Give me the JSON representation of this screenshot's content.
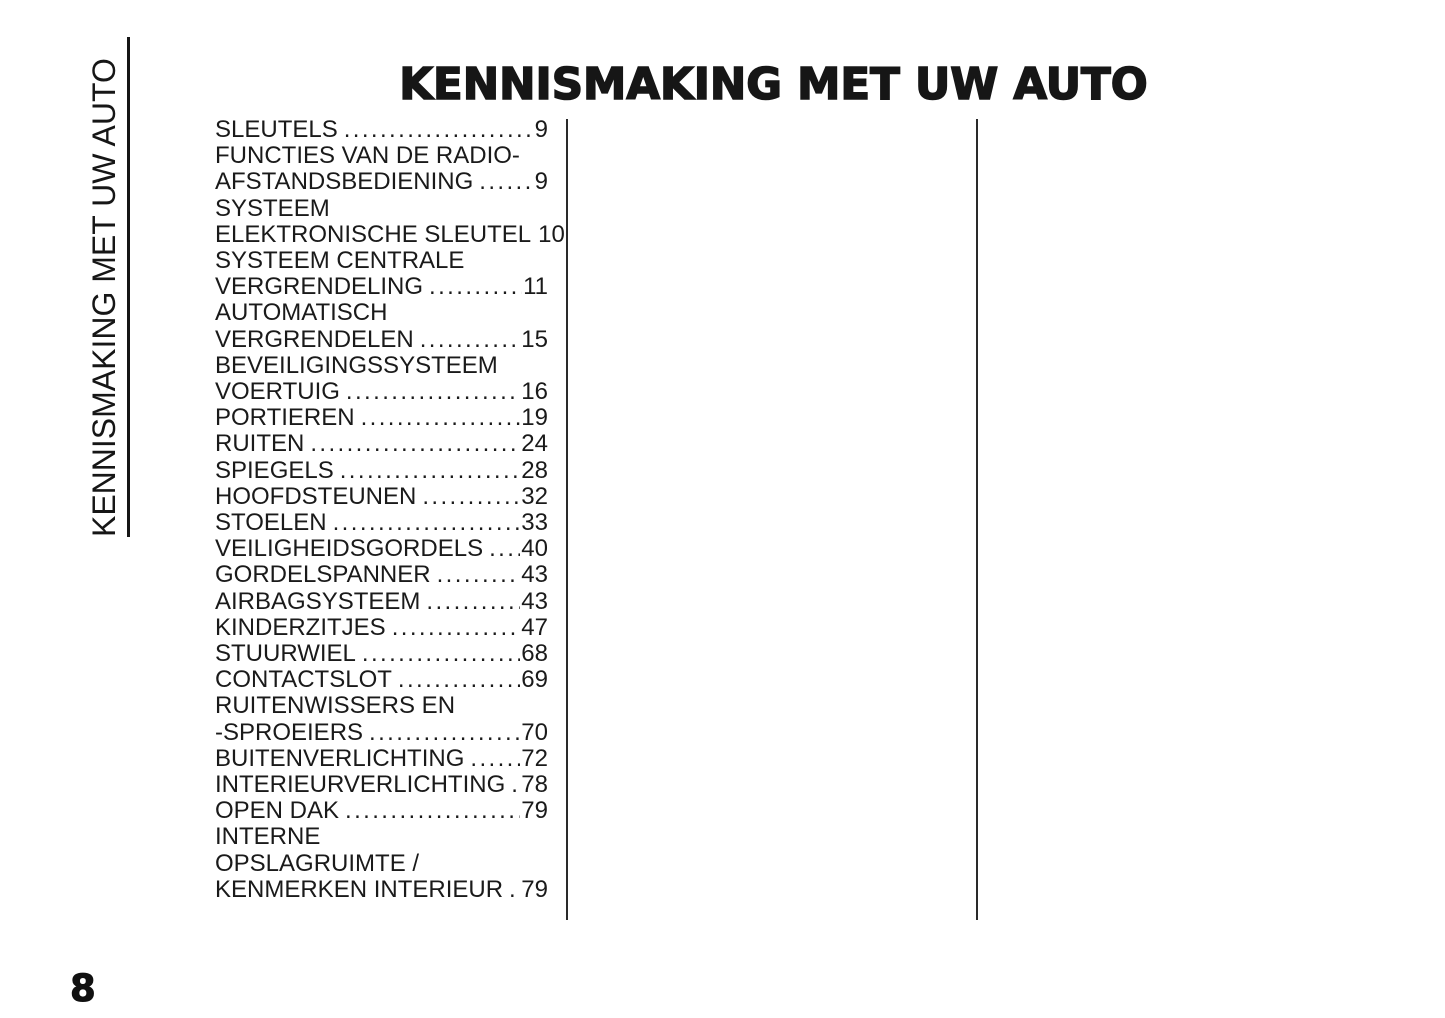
{
  "page": {
    "title": "KENNISMAKING MET UW AUTO",
    "sidebar_label": "KENNISMAKING MET UW AUTO",
    "page_number": "8"
  },
  "colors": {
    "background": "#ffffff",
    "text": "#1a1a1a"
  },
  "toc": {
    "leader_dots": "..........................................................................",
    "entries": [
      {
        "lines": [
          "SLEUTELS"
        ],
        "page": "9"
      },
      {
        "lines": [
          "FUNCTIES VAN DE RADIO-",
          "AFSTANDSBEDIENING"
        ],
        "page": "9"
      },
      {
        "lines": [
          "SYSTEEM",
          "ELEKTRONISCHE SLEUTEL"
        ],
        "page": "10"
      },
      {
        "lines": [
          "SYSTEEM CENTRALE",
          "VERGRENDELING"
        ],
        "page": "11"
      },
      {
        "lines": [
          "AUTOMATISCH",
          "VERGRENDELEN"
        ],
        "page": "15"
      },
      {
        "lines": [
          "BEVEILIGINGSSYSTEEM",
          "VOERTUIG"
        ],
        "page": "16"
      },
      {
        "lines": [
          "PORTIEREN"
        ],
        "page": "19"
      },
      {
        "lines": [
          "RUITEN"
        ],
        "page": "24"
      },
      {
        "lines": [
          "SPIEGELS"
        ],
        "page": "28"
      },
      {
        "lines": [
          "HOOFDSTEUNEN"
        ],
        "page": "32"
      },
      {
        "lines": [
          "STOELEN"
        ],
        "page": "33"
      },
      {
        "lines": [
          "VEILIGHEIDSGORDELS"
        ],
        "page": "40"
      },
      {
        "lines": [
          "GORDELSPANNER"
        ],
        "page": "43"
      },
      {
        "lines": [
          "AIRBAGSYSTEEM"
        ],
        "page": "43"
      },
      {
        "lines": [
          "KINDERZITJES"
        ],
        "page": "47"
      },
      {
        "lines": [
          "STUURWIEL"
        ],
        "page": "68"
      },
      {
        "lines": [
          "CONTACTSLOT"
        ],
        "page": "69"
      },
      {
        "lines": [
          "RUITENWISSERS EN",
          "-SPROEIERS"
        ],
        "page": "70"
      },
      {
        "lines": [
          "BUITENVERLICHTING"
        ],
        "page": "72"
      },
      {
        "lines": [
          "INTERIEURVERLICHTING"
        ],
        "page": "78"
      },
      {
        "lines": [
          "OPEN DAK"
        ],
        "page": "79"
      },
      {
        "lines": [
          "INTERNE",
          "OPSLAGRUIMTE /",
          "KENMERKEN INTERIEUR"
        ],
        "page": "79"
      }
    ]
  }
}
